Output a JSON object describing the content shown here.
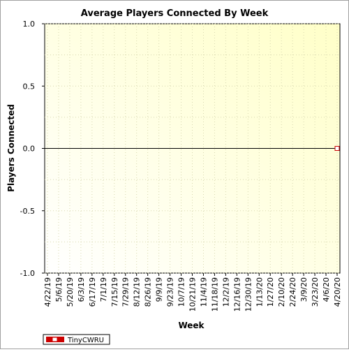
{
  "chart_data": {
    "type": "line",
    "title": "Average Players Connected By Week",
    "xlabel": "Week",
    "ylabel": "Players Connected",
    "ylim": [
      -1.0,
      1.0
    ],
    "y_ticks": [
      "1.0",
      "0.5",
      "0.0",
      "-0.5",
      "-1.0"
    ],
    "y_tick_values": [
      1.0,
      0.5,
      0.0,
      -0.5,
      -1.0
    ],
    "x_ticks": [
      "4/22/19",
      "5/6/19",
      "5/20/19",
      "6/3/19",
      "6/17/19",
      "7/1/19",
      "7/15/19",
      "7/29/19",
      "8/12/19",
      "8/26/19",
      "9/9/19",
      "9/23/19",
      "10/7/19",
      "10/21/19",
      "11/4/19",
      "11/18/19",
      "12/2/19",
      "12/16/19",
      "12/30/19",
      "1/13/20",
      "1/27/20",
      "2/10/20",
      "2/24/20",
      "3/9/20",
      "3/23/20",
      "4/6/20",
      "4/20/20"
    ],
    "grid": true,
    "legend_position": "bottom-left",
    "series": [
      {
        "name": "TinyCWRU",
        "color": "#cc0000",
        "x": [
          "4/20/20"
        ],
        "values": [
          0.0
        ]
      }
    ]
  }
}
